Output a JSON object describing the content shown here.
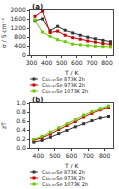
{
  "chart_data": [
    {
      "type": "line",
      "title": "(a)",
      "xlabel": "T / K",
      "ylabel": "σ / S cm⁻¹",
      "xlim": [
        290,
        840
      ],
      "xticks": [
        300,
        400,
        500,
        600,
        700,
        800
      ],
      "ylim": [
        0,
        2000
      ],
      "yticks": [
        0,
        400,
        800,
        1200,
        1600,
        2000
      ],
      "grid": false,
      "marker": "square",
      "x": [
        323,
        373,
        423,
        473,
        523,
        573,
        623,
        673,
        723,
        773,
        823
      ],
      "series": [
        {
          "name": "Cu₁.₉₇Se 873K 2h",
          "color": "#333333",
          "values": [
            1520,
            1600,
            1080,
            1280,
            1100,
            980,
            880,
            790,
            720,
            650,
            590
          ]
        },
        {
          "name": "Cu₁.₉₇Se 973K 2h",
          "color": "#cc0000",
          "values": [
            1720,
            1950,
            1000,
            1060,
            880,
            770,
            700,
            620,
            570,
            510,
            470
          ]
        },
        {
          "name": "Cu₁.₉₇Se 1073K 2h",
          "color": "#66cc00",
          "values": [
            1560,
            1020,
            830,
            680,
            590,
            480,
            450,
            410,
            385,
            370,
            360
          ]
        }
      ]
    },
    {
      "type": "line",
      "title": "(b)",
      "xlabel": "T / K",
      "ylabel": "zT",
      "xlim": [
        350,
        850
      ],
      "xticks": [
        400,
        500,
        600,
        700,
        800
      ],
      "ylim": [
        0.0,
        1.0
      ],
      "yticks": [
        {
          "value": 0.0,
          "label": "0.0"
        },
        0.2,
        0.4,
        0.6,
        0.8,
        {
          "value": 1.0,
          "label": "1.0"
        }
      ],
      "grid": false,
      "marker": "square",
      "x": [
        373,
        423,
        473,
        523,
        573,
        623,
        673,
        723,
        773,
        823
      ],
      "series": [
        {
          "name": "Cu₁.₉₇Se 873K 2h",
          "color": "#333333",
          "values": [
            0.13,
            0.17,
            0.24,
            0.32,
            0.39,
            0.47,
            0.54,
            0.61,
            0.67,
            0.7
          ]
        },
        {
          "name": "Cu₁.₉₇Se 973K 2h",
          "color": "#cc0000",
          "values": [
            0.17,
            0.23,
            0.31,
            0.41,
            0.5,
            0.59,
            0.69,
            0.77,
            0.85,
            0.9
          ]
        },
        {
          "name": "Cu₁.₉₇Se 1073K 2h",
          "color": "#66cc00",
          "values": [
            0.19,
            0.26,
            0.35,
            0.45,
            0.54,
            0.63,
            0.73,
            0.81,
            0.87,
            0.93
          ]
        }
      ]
    }
  ]
}
